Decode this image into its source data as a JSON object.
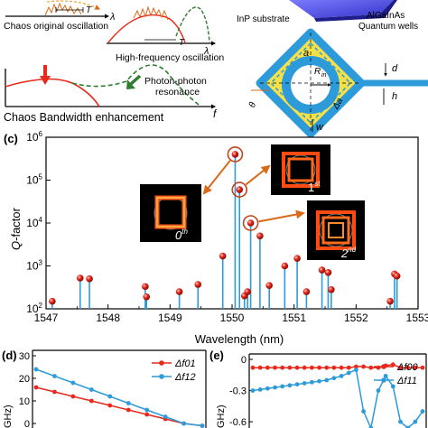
{
  "top_left": {
    "lambda": "λ",
    "T": "T",
    "caption_a": "Chaos original oscillation",
    "caption_b": "High-frequency oscillation",
    "photon_label": "Photon-photon",
    "resonance_label": "resonance",
    "title": "Chaos Bandwidth enhancement",
    "f": "f"
  },
  "top_right": {
    "substrate": "InP substrate",
    "qw_line1": "AlGaInAs",
    "qw_line2": "Quantum wells",
    "a": "a",
    "d": "d",
    "h": "h",
    "rin": "R",
    "rin_sub": "in",
    "delta_a": "Δa",
    "w": "w",
    "theta": "θ"
  },
  "panel_c": {
    "label": "(c)",
    "ylabel_main": "Q",
    "ylabel_rest": "-factor",
    "xlabel": "Wavelength (nm)",
    "inset_labels": {
      "zero": {
        "num": "0",
        "sup": "th"
      },
      "first": {
        "num": "1",
        "sup": "st"
      },
      "second": {
        "num": "2",
        "sup": "nd"
      }
    }
  },
  "panel_d": {
    "label": "(d)",
    "ylabel": "GHz)",
    "yticks": [
      "30",
      "20",
      "10",
      "0"
    ],
    "legend": [
      "Δf01",
      "Δf12"
    ]
  },
  "panel_e": {
    "label": "(e)",
    "ylabel": "GHz)",
    "yticks": [
      "0.0",
      "-0.3",
      "-0.6"
    ],
    "legend": [
      "Δf00",
      "Δf11"
    ]
  },
  "colors": {
    "red": "#e8291c",
    "blue": "#2d9bd9",
    "green": "#2f7d32",
    "orange": "#d96a1a",
    "yellow": "#f4e14a",
    "purple": "#5553e0"
  },
  "chart_data": [
    {
      "type": "scatter",
      "xlabel": "Wavelength (nm)",
      "ylabel": "Q-factor",
      "xlim": [
        1547,
        1553
      ],
      "ylim": [
        100,
        1000000
      ],
      "yscale": "log",
      "xticks": [
        1547,
        1548,
        1549,
        1550,
        1551,
        1552,
        1553
      ],
      "ytick_exponents": [
        2,
        3,
        4,
        5,
        6
      ],
      "stems": true,
      "x": [
        1547.1,
        1547.55,
        1547.7,
        1548.6,
        1548.62,
        1549.15,
        1549.45,
        1549.85,
        1550.05,
        1550.12,
        1550.2,
        1550.25,
        1550.3,
        1550.45,
        1550.6,
        1550.85,
        1551.05,
        1551.2,
        1551.45,
        1551.55,
        1551.6,
        1552.55,
        1552.62,
        1552.66
      ],
      "y": [
        150,
        520,
        500,
        330,
        190,
        250,
        370,
        1700,
        400000,
        60000,
        200,
        250,
        10000,
        5000,
        350,
        1000,
        1500,
        250,
        800,
        700,
        280,
        150,
        650,
        580
      ]
    },
    {
      "type": "line",
      "ylabel": "GHz)",
      "yticks": [
        30,
        20,
        10,
        0
      ],
      "series": [
        {
          "name": "Δf01",
          "y": [
            16,
            14,
            12,
            10,
            8,
            6,
            4,
            2,
            0,
            -1
          ]
        },
        {
          "name": "Δf12",
          "y": [
            24,
            21,
            18,
            15,
            12,
            9,
            6,
            3,
            0,
            -1
          ]
        }
      ]
    },
    {
      "type": "line",
      "ylabel": "GHz)",
      "yticks": [
        0.0,
        -0.3,
        -0.6
      ],
      "series": [
        {
          "name": "Δf00",
          "y": [
            -0.08,
            -0.08,
            -0.08,
            -0.08,
            -0.08,
            -0.08,
            -0.08,
            -0.08,
            -0.08,
            -0.08,
            -0.08,
            -0.08,
            -0.08,
            -0.08,
            -0.07,
            -0.07,
            -0.08,
            -0.08,
            -0.06,
            -0.05,
            -0.08,
            -0.08,
            -0.08,
            -0.08
          ]
        },
        {
          "name": "Δf11",
          "y": [
            -0.3,
            -0.29,
            -0.28,
            -0.27,
            -0.26,
            -0.25,
            -0.24,
            -0.23,
            -0.22,
            -0.21,
            -0.2,
            -0.18,
            -0.16,
            -0.13,
            -0.1,
            -0.5,
            -0.66,
            -0.3,
            -0.16,
            -0.26,
            -0.6,
            -0.66,
            -0.6,
            -0.5
          ]
        }
      ]
    }
  ]
}
